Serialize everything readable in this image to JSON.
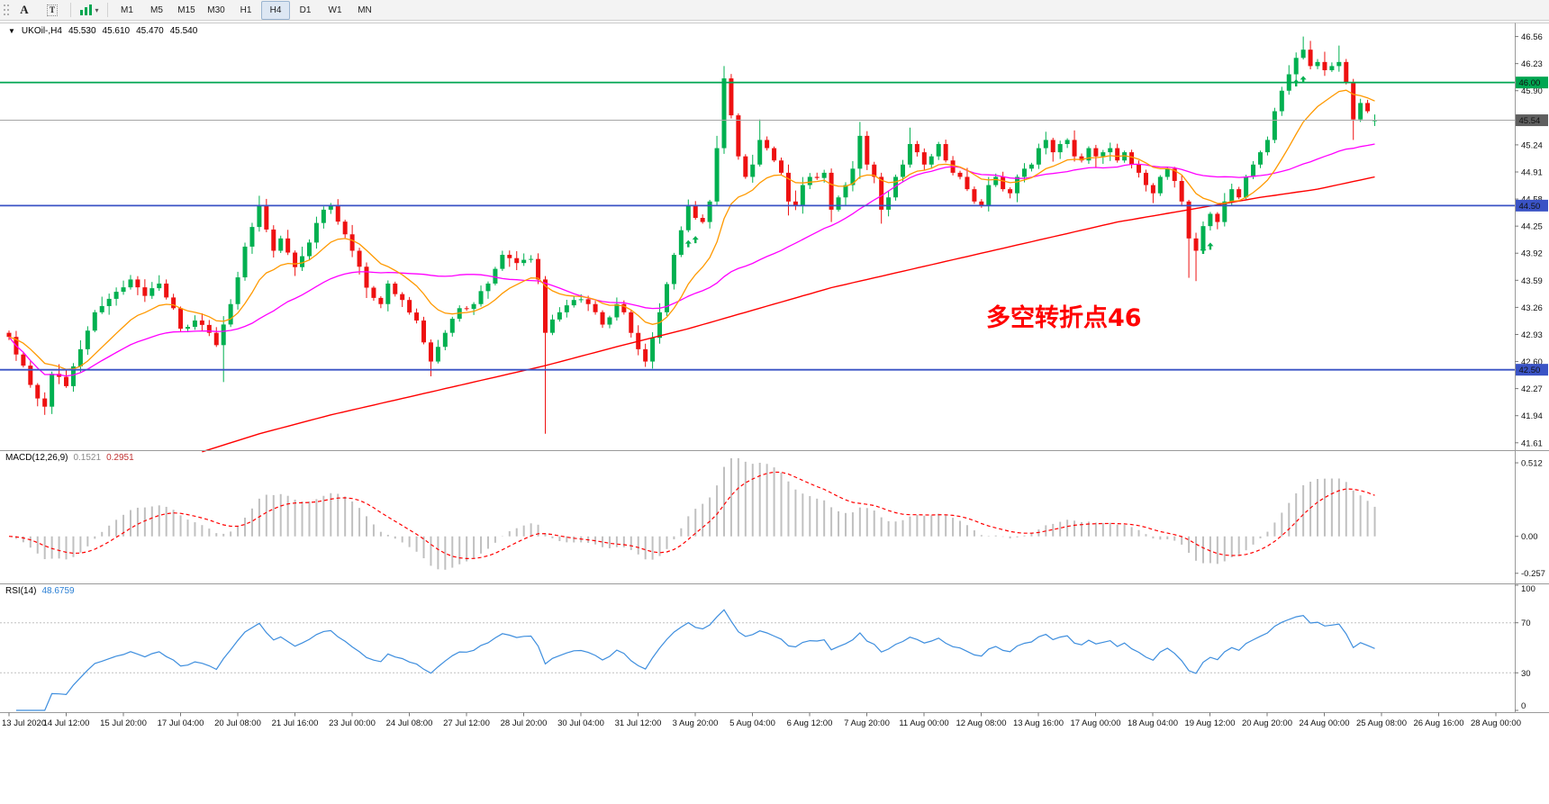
{
  "toolbar": {
    "buttons": [
      {
        "id": "text-annotation",
        "label": "A"
      },
      {
        "id": "text-label",
        "label": "T"
      }
    ],
    "indicator_caret": "▾",
    "timeframes": [
      "M1",
      "M5",
      "M15",
      "M30",
      "H1",
      "H4",
      "D1",
      "W1",
      "MN"
    ],
    "active_timeframe": "H4"
  },
  "chart": {
    "symbol_line": {
      "marker": "▼",
      "symbol": "UKOil-,H4",
      "open": "45.530",
      "high": "45.610",
      "low": "45.470",
      "close": "45.540"
    },
    "annotation": {
      "text": "多空转折点46",
      "color": "#ff0000"
    },
    "levels": [
      {
        "price": 46.0,
        "label": "46.00",
        "color": "#00a651"
      },
      {
        "price": 44.5,
        "label": "44.50",
        "color": "#3a53c5"
      },
      {
        "price": 42.5,
        "label": "42.50",
        "color": "#3a53c5"
      }
    ],
    "current_price": {
      "value": 45.54,
      "label": "45.54",
      "line_color": "#a6a6a6",
      "badge_bg": "#5f5f5f"
    },
    "price_axis": {
      "max": 46.72,
      "min": 41.52,
      "ticks": [
        "46.56",
        "46.23",
        "45.90",
        "45.24",
        "44.91",
        "44.58",
        "44.25",
        "43.92",
        "43.59",
        "43.26",
        "42.93",
        "42.60",
        "42.27",
        "41.94",
        "41.61"
      ]
    },
    "colors": {
      "up": "#00b050",
      "down": "#ee1111",
      "ma_fast": "#ff9900",
      "ma_mid": "#ff00ff",
      "ma_slow": "#ff0000",
      "macd_hist": "#c0c0c0",
      "macd_signal": "#ff0000",
      "rsi": "#3e8ede",
      "level_silver": "#c0c0c0",
      "arrow": "#00b050"
    }
  },
  "macd_panel": {
    "name": "MACD(12,26,9)",
    "main_value": "0.1521",
    "signal_value": "0.2951",
    "axis_labels": [
      "0.512",
      "0.00",
      "-0.257"
    ]
  },
  "rsi_panel": {
    "name": "RSI(14)",
    "value": "48.6759",
    "axis_labels": [
      "100",
      "70",
      "30",
      "0"
    ],
    "levels": [
      70,
      30
    ]
  },
  "time_axis": {
    "labels": [
      "13 Jul 2020",
      "14 Jul 12:00",
      "15 Jul 20:00",
      "17 Jul 04:00",
      "20 Jul 08:00",
      "21 Jul 16:00",
      "23 Jul 00:00",
      "24 Jul 08:00",
      "27 Jul 12:00",
      "28 Jul 20:00",
      "30 Jul 04:00",
      "31 Jul 12:00",
      "3 Aug 20:00",
      "5 Aug 04:00",
      "6 Aug 12:00",
      "7 Aug 20:00",
      "11 Aug 00:00",
      "12 Aug 08:00",
      "13 Aug 16:00",
      "17 Aug 00:00",
      "18 Aug 04:00",
      "19 Aug 12:00",
      "20 Aug 20:00",
      "24 Aug 00:00",
      "25 Aug 08:00",
      "26 Aug 16:00",
      "28 Aug 00:00"
    ]
  },
  "chart_data": {
    "type": "candlestick",
    "symbol": "UKOil-",
    "timeframe": "H4",
    "last_ohlc": {
      "open": 45.53,
      "high": 45.61,
      "low": 45.47,
      "close": 45.54
    },
    "n_candles": 192,
    "noise_seed": 7,
    "close_waypoints": [
      [
        0,
        42.9
      ],
      [
        2,
        42.55
      ],
      [
        4,
        42.15
      ],
      [
        5,
        42.05
      ],
      [
        6,
        42.45
      ],
      [
        8,
        42.3
      ],
      [
        10,
        42.75
      ],
      [
        12,
        43.2
      ],
      [
        15,
        43.45
      ],
      [
        17,
        43.6
      ],
      [
        19,
        43.4
      ],
      [
        21,
        43.55
      ],
      [
        23,
        43.25
      ],
      [
        24,
        43.0
      ],
      [
        26,
        43.1
      ],
      [
        28,
        42.95
      ],
      [
        29,
        42.8
      ],
      [
        31,
        43.3
      ],
      [
        33,
        44.0
      ],
      [
        35,
        44.5
      ],
      [
        37,
        43.95
      ],
      [
        38,
        44.1
      ],
      [
        40,
        43.75
      ],
      [
        42,
        44.05
      ],
      [
        44,
        44.45
      ],
      [
        45,
        44.5
      ],
      [
        47,
        44.15
      ],
      [
        48,
        43.95
      ],
      [
        50,
        43.5
      ],
      [
        52,
        43.3
      ],
      [
        53,
        43.55
      ],
      [
        55,
        43.35
      ],
      [
        57,
        43.1
      ],
      [
        59,
        42.6
      ],
      [
        61,
        42.95
      ],
      [
        63,
        43.25
      ],
      [
        65,
        43.3
      ],
      [
        67,
        43.55
      ],
      [
        69,
        43.9
      ],
      [
        71,
        43.8
      ],
      [
        73,
        43.85
      ],
      [
        74,
        43.6
      ],
      [
        75,
        42.95
      ],
      [
        77,
        43.2
      ],
      [
        79,
        43.35
      ],
      [
        81,
        43.3
      ],
      [
        83,
        43.05
      ],
      [
        85,
        43.3
      ],
      [
        86,
        43.2
      ],
      [
        88,
        42.75
      ],
      [
        89,
        42.6
      ],
      [
        91,
        43.2
      ],
      [
        93,
        43.9
      ],
      [
        94,
        44.2
      ],
      [
        95,
        44.5
      ],
      [
        96,
        44.35
      ],
      [
        97,
        44.3
      ],
      [
        98,
        44.55
      ],
      [
        99,
        45.2
      ],
      [
        100,
        46.05
      ],
      [
        101,
        45.6
      ],
      [
        102,
        45.1
      ],
      [
        103,
        44.85
      ],
      [
        104,
        45.0
      ],
      [
        105,
        45.3
      ],
      [
        106,
        45.2
      ],
      [
        107,
        45.05
      ],
      [
        108,
        44.9
      ],
      [
        109,
        44.55
      ],
      [
        110,
        44.5
      ],
      [
        111,
        44.75
      ],
      [
        112,
        44.85
      ],
      [
        114,
        44.9
      ],
      [
        115,
        44.45
      ],
      [
        116,
        44.6
      ],
      [
        117,
        44.75
      ],
      [
        118,
        44.95
      ],
      [
        119,
        45.35
      ],
      [
        120,
        45.0
      ],
      [
        121,
        44.85
      ],
      [
        122,
        44.45
      ],
      [
        123,
        44.6
      ],
      [
        124,
        44.85
      ],
      [
        125,
        45.0
      ],
      [
        126,
        45.25
      ],
      [
        127,
        45.15
      ],
      [
        128,
        45.0
      ],
      [
        129,
        45.1
      ],
      [
        130,
        45.25
      ],
      [
        131,
        45.05
      ],
      [
        132,
        44.9
      ],
      [
        133,
        44.85
      ],
      [
        134,
        44.7
      ],
      [
        135,
        44.55
      ],
      [
        136,
        44.5
      ],
      [
        137,
        44.75
      ],
      [
        138,
        44.85
      ],
      [
        139,
        44.7
      ],
      [
        140,
        44.65
      ],
      [
        141,
        44.85
      ],
      [
        142,
        44.95
      ],
      [
        143,
        45.0
      ],
      [
        144,
        45.2
      ],
      [
        145,
        45.3
      ],
      [
        146,
        45.15
      ],
      [
        147,
        45.25
      ],
      [
        148,
        45.3
      ],
      [
        149,
        45.1
      ],
      [
        150,
        45.05
      ],
      [
        151,
        45.2
      ],
      [
        152,
        45.1
      ],
      [
        153,
        45.15
      ],
      [
        154,
        45.2
      ],
      [
        155,
        45.05
      ],
      [
        156,
        45.15
      ],
      [
        157,
        45.0
      ],
      [
        158,
        44.9
      ],
      [
        159,
        44.75
      ],
      [
        160,
        44.65
      ],
      [
        161,
        44.85
      ],
      [
        162,
        44.95
      ],
      [
        163,
        44.8
      ],
      [
        164,
        44.55
      ],
      [
        165,
        44.1
      ],
      [
        166,
        43.95
      ],
      [
        167,
        44.25
      ],
      [
        168,
        44.4
      ],
      [
        169,
        44.3
      ],
      [
        170,
        44.55
      ],
      [
        171,
        44.7
      ],
      [
        172,
        44.6
      ],
      [
        173,
        44.85
      ],
      [
        174,
        45.0
      ],
      [
        175,
        45.15
      ],
      [
        176,
        45.3
      ],
      [
        177,
        45.65
      ],
      [
        178,
        45.9
      ],
      [
        179,
        46.1
      ],
      [
        180,
        46.3
      ],
      [
        181,
        46.4
      ],
      [
        182,
        46.2
      ],
      [
        183,
        46.25
      ],
      [
        184,
        46.15
      ],
      [
        185,
        46.2
      ],
      [
        186,
        46.25
      ],
      [
        187,
        46.0
      ],
      [
        188,
        45.55
      ],
      [
        189,
        45.75
      ],
      [
        190,
        45.65
      ],
      [
        191,
        45.54
      ]
    ],
    "wick_overrides": {
      "5": {
        "l": 41.95
      },
      "30": {
        "l": 42.35
      },
      "35": {
        "h": 44.62
      },
      "59": {
        "l": 42.42
      },
      "75": {
        "l": 41.72
      },
      "99": {
        "h": 45.35
      },
      "100": {
        "h": 46.2
      },
      "105": {
        "h": 45.55
      },
      "109": {
        "l": 44.38
      },
      "115": {
        "l": 44.3
      },
      "119": {
        "h": 45.52
      },
      "122": {
        "l": 44.28
      },
      "126": {
        "h": 45.45
      },
      "145": {
        "h": 45.4
      },
      "165": {
        "l": 43.62
      },
      "166": {
        "l": 43.58
      },
      "181": {
        "h": 46.56
      },
      "186": {
        "h": 46.45
      },
      "188": {
        "l": 45.3
      }
    },
    "last_candle_override": {
      "o": 45.53,
      "h": 45.61,
      "l": 45.47,
      "c": 45.54
    },
    "moving_averages": {
      "fast_ema": 13,
      "mid_sma": 34
    },
    "slow_ma_path": [
      [
        27,
        41.5
      ],
      [
        35,
        41.72
      ],
      [
        45,
        41.95
      ],
      [
        55,
        42.15
      ],
      [
        65,
        42.35
      ],
      [
        75,
        42.55
      ],
      [
        85,
        42.78
      ],
      [
        95,
        43.0
      ],
      [
        105,
        43.25
      ],
      [
        115,
        43.5
      ],
      [
        125,
        43.7
      ],
      [
        135,
        43.9
      ],
      [
        145,
        44.1
      ],
      [
        155,
        44.3
      ],
      [
        165,
        44.45
      ],
      [
        175,
        44.6
      ],
      [
        183,
        44.7
      ],
      [
        191,
        44.85
      ]
    ],
    "buy_arrows": [
      [
        95,
        44.08
      ],
      [
        96,
        44.13
      ],
      [
        167,
        44.0
      ],
      [
        168,
        44.05
      ],
      [
        180,
        46.04
      ],
      [
        181,
        46.08
      ]
    ],
    "indicators": {
      "macd": {
        "fast": 12,
        "slow": 26,
        "signal": 9,
        "current": "0.1521",
        "current_signal": "0.2951",
        "draw_max": 0.575,
        "draw_min": -0.315
      },
      "rsi": {
        "period": 14,
        "current": "48.6759",
        "levels": [
          70,
          30
        ]
      }
    }
  }
}
